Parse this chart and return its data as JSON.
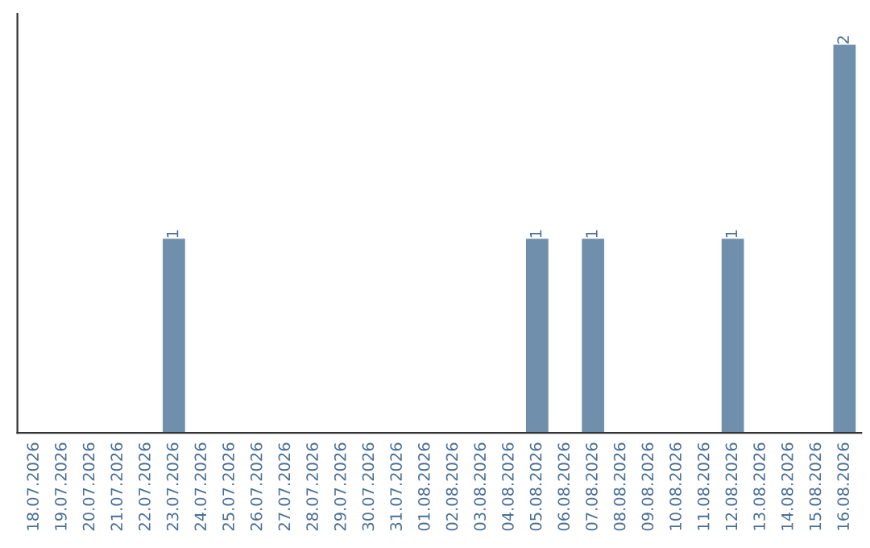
{
  "chart_data": {
    "type": "bar",
    "categories": [
      "18.07.2026",
      "19.07.2026",
      "20.07.2026",
      "21.07.2026",
      "22.07.2026",
      "23.07.2026",
      "24.07.2026",
      "25.07.2026",
      "26.07.2026",
      "27.07.2026",
      "28.07.2026",
      "29.07.2026",
      "30.07.2026",
      "31.07.2026",
      "01.08.2026",
      "02.08.2026",
      "03.08.2026",
      "04.08.2026",
      "05.08.2026",
      "06.08.2026",
      "07.08.2026",
      "08.08.2026",
      "09.08.2026",
      "10.08.2026",
      "11.08.2026",
      "12.08.2026",
      "13.08.2026",
      "14.08.2026",
      "15.08.2026",
      "16.08.2026"
    ],
    "values": [
      0,
      0,
      0,
      0,
      0,
      1,
      0,
      0,
      0,
      0,
      0,
      0,
      0,
      0,
      0,
      0,
      0,
      0,
      1,
      0,
      1,
      0,
      0,
      0,
      0,
      1,
      0,
      0,
      0,
      2
    ],
    "value_labels": [
      null,
      null,
      null,
      null,
      null,
      "1",
      null,
      null,
      null,
      null,
      null,
      null,
      null,
      null,
      null,
      null,
      null,
      null,
      "1",
      null,
      "1",
      null,
      null,
      null,
      null,
      "1",
      null,
      null,
      null,
      "2"
    ],
    "color": "#6f8fad",
    "grid": false,
    "legend": false
  }
}
